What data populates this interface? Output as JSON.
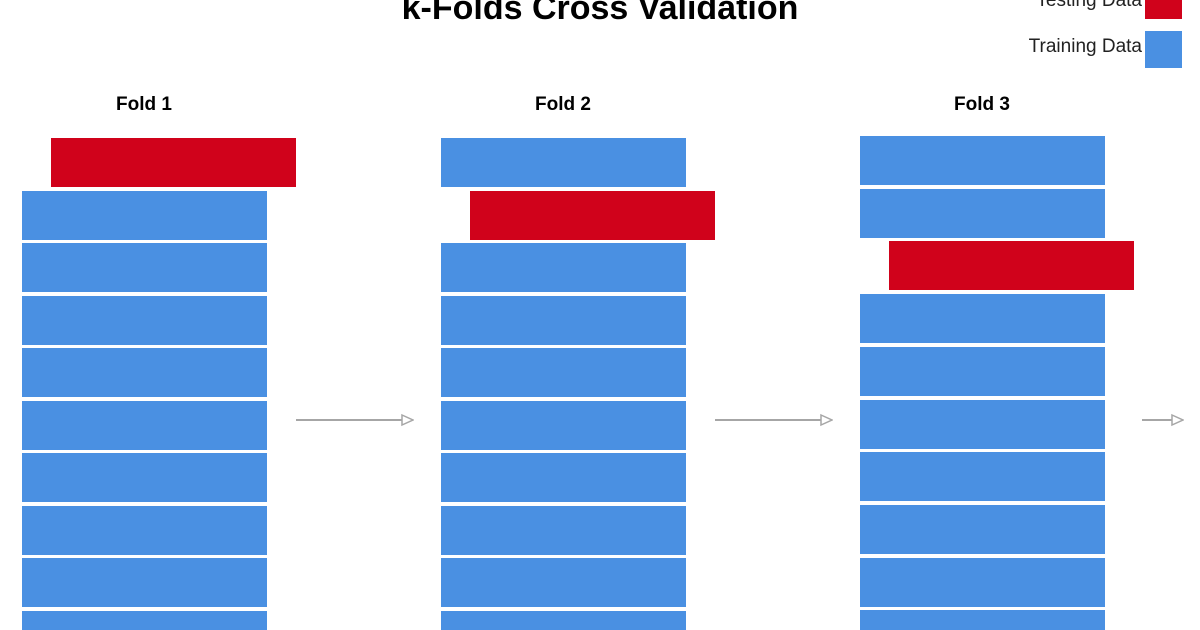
{
  "title": "k-Folds Cross Validation",
  "legend": {
    "testing": {
      "label": "Testing Data",
      "color": "#d0021b"
    },
    "training": {
      "label": "Training Data",
      "color": "#4a90e2"
    }
  },
  "arrow_color": "#a6a6a6",
  "blocks_per_fold": 10,
  "folds": [
    {
      "label": "Fold 1",
      "test_index": 0
    },
    {
      "label": "Fold 2",
      "test_index": 1
    },
    {
      "label": "Fold 3",
      "test_index": 2
    }
  ]
}
